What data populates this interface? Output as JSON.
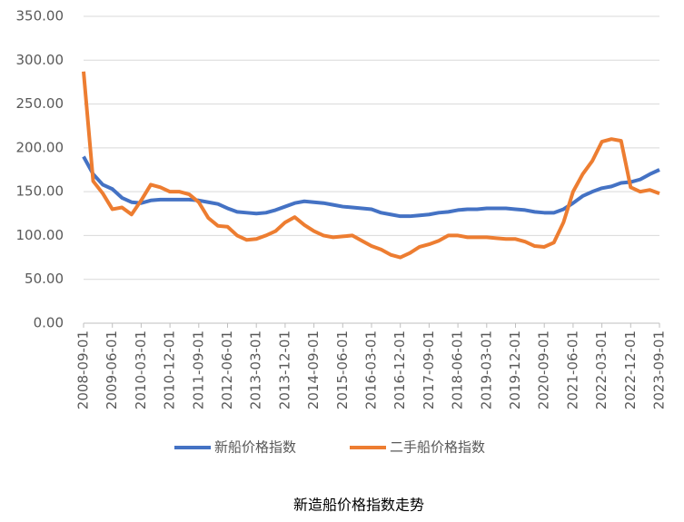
{
  "chart_data": {
    "type": "line",
    "title": "新造船价格指数走势",
    "x": [
      "2008-09-01",
      "2008-12-01",
      "2009-03-01",
      "2009-06-01",
      "2009-09-01",
      "2009-12-01",
      "2010-03-01",
      "2010-06-01",
      "2010-09-01",
      "2010-12-01",
      "2011-03-01",
      "2011-06-01",
      "2011-09-01",
      "2011-12-01",
      "2012-03-01",
      "2012-06-01",
      "2012-09-01",
      "2012-12-01",
      "2013-03-01",
      "2013-06-01",
      "2013-09-01",
      "2013-12-01",
      "2014-03-01",
      "2014-06-01",
      "2014-09-01",
      "2014-12-01",
      "2015-03-01",
      "2015-06-01",
      "2015-09-01",
      "2015-12-01",
      "2016-03-01",
      "2016-06-01",
      "2016-09-01",
      "2016-12-01",
      "2017-03-01",
      "2017-06-01",
      "2017-09-01",
      "2017-12-01",
      "2018-03-01",
      "2018-06-01",
      "2018-09-01",
      "2018-12-01",
      "2019-03-01",
      "2019-06-01",
      "2019-09-01",
      "2019-12-01",
      "2020-03-01",
      "2020-06-01",
      "2020-09-01",
      "2020-12-01",
      "2021-03-01",
      "2021-06-01",
      "2021-09-01",
      "2021-12-01",
      "2022-03-01",
      "2022-06-01",
      "2022-09-01",
      "2022-12-01",
      "2023-03-01",
      "2023-06-01",
      "2023-09-01"
    ],
    "series": [
      {
        "name": "新船价格指数",
        "color": "#4472c4",
        "values": [
          190,
          170,
          158,
          153,
          143,
          138,
          137,
          140,
          141,
          141,
          141,
          141,
          140,
          138,
          136,
          131,
          127,
          126,
          125,
          126,
          129,
          133,
          137,
          139,
          138,
          137,
          135,
          133,
          132,
          131,
          130,
          126,
          124,
          122,
          122,
          123,
          124,
          126,
          127,
          129,
          130,
          130,
          131,
          131,
          131,
          130,
          129,
          127,
          126,
          126,
          130,
          137,
          145,
          150,
          154,
          156,
          160,
          161,
          164,
          170,
          175
        ]
      },
      {
        "name": "二手船价格指数",
        "color": "#ed7d31",
        "values": [
          287,
          162,
          148,
          130,
          132,
          124,
          140,
          158,
          155,
          150,
          150,
          147,
          138,
          120,
          111,
          110,
          100,
          95,
          96,
          100,
          105,
          115,
          121,
          112,
          105,
          100,
          98,
          99,
          100,
          94,
          88,
          84,
          78,
          75,
          80,
          87,
          90,
          94,
          100,
          100,
          98,
          98,
          98,
          97,
          96,
          96,
          93,
          88,
          87,
          92,
          115,
          150,
          170,
          185,
          207,
          210,
          208,
          155,
          150,
          152,
          148
        ]
      }
    ],
    "xlim": [
      "2008-09-01",
      "2023-09-01"
    ],
    "xticks": [
      "2008-09-01",
      "2009-06-01",
      "2010-03-01",
      "2010-12-01",
      "2011-09-01",
      "2012-06-01",
      "2013-03-01",
      "2013-12-01",
      "2014-09-01",
      "2015-06-01",
      "2016-03-01",
      "2016-12-01",
      "2017-09-01",
      "2018-06-01",
      "2019-03-01",
      "2019-12-01",
      "2020-09-01",
      "2021-06-01",
      "2022-03-01",
      "2022-12-01",
      "2023-09-01"
    ],
    "ylim": [
      0,
      350
    ],
    "yticks": [
      {
        "value": 0,
        "label": "0.00"
      },
      {
        "value": 50,
        "label": "50.00"
      },
      {
        "value": 100,
        "label": "100.00"
      },
      {
        "value": 150,
        "label": "150.00"
      },
      {
        "value": 200,
        "label": "200.00"
      },
      {
        "value": 250,
        "label": "250.00"
      },
      {
        "value": 300,
        "label": "300.00"
      },
      {
        "value": 350,
        "label": "350.00"
      }
    ],
    "grid": true,
    "legend": "bottom"
  }
}
